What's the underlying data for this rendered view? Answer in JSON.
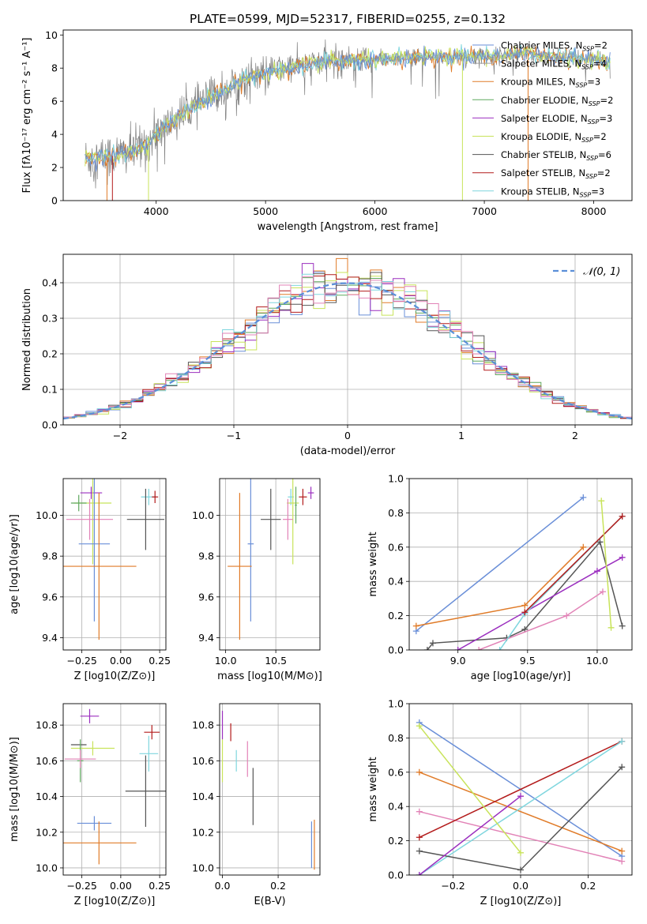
{
  "figure": {
    "title": "PLATE=0599, MJD=52317, FIBERID=0255, z=0.132"
  },
  "colors": {
    "Chabrier MILES": "#6a8fd8",
    "Salpeter MILES": "#9e9e9e",
    "Kroupa MILES": "#e07b28",
    "Chabrier ELODIE": "#5fa85f",
    "Salpeter ELODIE": "#9b2fbf",
    "Kroupa ELODIE": "#c8e35a",
    "Chabrier STELIB": "#555555",
    "Salpeter STELIB": "#b31b1b",
    "Kroupa STELIB": "#7fd6de",
    "pink": "#e283b7",
    "gaussian": "#5b8fd8",
    "data": "#7f7f7f"
  },
  "chart_data": [
    {
      "id": "spectrum",
      "type": "line",
      "xlabel": "wavelength [Angstrom, rest frame]",
      "ylabel": "Flux [fλ10⁻¹⁷ erg cm⁻² s⁻¹ A⁻¹]",
      "xlim": [
        3150,
        8350
      ],
      "ylim": [
        0,
        10.3
      ],
      "xticks": [
        4000,
        5000,
        6000,
        7000,
        8000
      ],
      "yticks": [
        0,
        2,
        4,
        6,
        8,
        10
      ],
      "legend_position": "right",
      "legend": [
        {
          "name": "Chabrier MILES, N_SSP=2",
          "color_key": "Chabrier MILES"
        },
        {
          "name": "Salpeter MILES, N_SSP=4",
          "color_key": "Salpeter MILES"
        },
        {
          "name": "Kroupa MILES, N_SSP=3",
          "color_key": "Kroupa MILES"
        },
        {
          "name": "Chabrier ELODIE, N_SSP=2",
          "color_key": "Chabrier ELODIE"
        },
        {
          "name": "Salpeter ELODIE, N_SSP=3",
          "color_key": "Salpeter ELODIE"
        },
        {
          "name": "Kroupa ELODIE, N_SSP=2",
          "color_key": "Kroupa ELODIE"
        },
        {
          "name": "Chabrier STELIB, N_SSP=6",
          "color_key": "Chabrier STELIB"
        },
        {
          "name": "Salpeter STELIB, N_SSP=2",
          "color_key": "Salpeter STELIB"
        },
        {
          "name": "Kroupa STELIB, N_SSP=3",
          "color_key": "Kroupa STELIB"
        }
      ],
      "continuum": [
        [
          3350,
          2.5
        ],
        [
          3600,
          2.7
        ],
        [
          3800,
          3.0
        ],
        [
          3950,
          3.6
        ],
        [
          4050,
          4.3
        ],
        [
          4200,
          5.0
        ],
        [
          4400,
          5.9
        ],
        [
          4600,
          6.6
        ],
        [
          4850,
          7.4
        ],
        [
          5100,
          7.9
        ],
        [
          5400,
          8.2
        ],
        [
          5700,
          8.5
        ],
        [
          6000,
          8.5
        ],
        [
          6300,
          8.6
        ],
        [
          6600,
          8.7
        ],
        [
          7000,
          8.7
        ],
        [
          7400,
          8.9
        ],
        [
          7800,
          8.6
        ],
        [
          8150,
          8.4
        ]
      ]
    },
    {
      "id": "residuals",
      "type": "bar",
      "xlabel": "(data-model)/error",
      "ylabel": "Normed distribution",
      "xlim": [
        -2.5,
        2.5
      ],
      "ylim": [
        0,
        0.48
      ],
      "xticks": [
        -2,
        -1,
        0,
        1,
        2
      ],
      "yticks": [
        0.0,
        0.1,
        0.2,
        0.3,
        0.4
      ],
      "legend": [
        {
          "name": "N(0,1)",
          "color_key": "gaussian"
        }
      ],
      "legend_position": "top-right",
      "bin_width": 0.1,
      "grid": true
    },
    {
      "id": "age_vs_Z",
      "type": "scatter",
      "xlabel": "Z [log10(Z/Z⊙)]",
      "ylabel": "age  [log10(age/yr)]",
      "xlim": [
        -0.37,
        0.29
      ],
      "ylim": [
        9.34,
        10.18
      ],
      "xticks": [
        -0.25,
        0.0,
        0.25
      ],
      "yticks": [
        9.4,
        9.6,
        9.8,
        10.0
      ],
      "grid": true,
      "points": [
        {
          "color_key": "Salpeter ELODIE",
          "x": -0.19,
          "y": 10.11,
          "xerr": 0.07,
          "yerr": 0.03
        },
        {
          "color_key": "Kroupa ELODIE",
          "x": -0.18,
          "y": 10.06,
          "xerr": 0.12,
          "yerr": 0.3
        },
        {
          "color_key": "Chabrier ELODIE",
          "x": -0.27,
          "y": 10.06,
          "xerr": 0.05,
          "yerr": 0.04
        },
        {
          "color_key": "Kroupa STELIB",
          "x": 0.18,
          "y": 10.09,
          "xerr": 0.05,
          "yerr": 0.04
        },
        {
          "color_key": "Salpeter STELIB",
          "x": 0.22,
          "y": 10.09,
          "xerr": 0.02,
          "yerr": 0.03
        },
        {
          "color_key": "pink",
          "x": -0.2,
          "y": 9.98,
          "xerr": 0.15,
          "yerr": 0.1
        },
        {
          "color_key": "Chabrier STELIB",
          "x": 0.16,
          "y": 9.98,
          "xerr": 0.12,
          "yerr": 0.15
        },
        {
          "color_key": "Chabrier MILES",
          "x": -0.17,
          "y": 9.86,
          "xerr": 0.1,
          "yerr": 0.38
        },
        {
          "color_key": "Kroupa MILES",
          "x": -0.14,
          "y": 9.75,
          "xerr": 0.24,
          "yerr": 0.36
        }
      ]
    },
    {
      "id": "age_vs_mass",
      "type": "scatter",
      "xlabel": "mass [log10(M/M⊙)]",
      "ylabel": "",
      "xlim": [
        9.94,
        10.94
      ],
      "ylim": [
        9.34,
        10.18
      ],
      "xticks": [
        10.0,
        10.5
      ],
      "yticks": [
        9.4,
        9.6,
        9.8,
        10.0
      ],
      "grid": true,
      "points": [
        {
          "color_key": "Salpeter ELODIE",
          "x": 10.85,
          "y": 10.11,
          "xerr": 0.03,
          "yerr": 0.03
        },
        {
          "color_key": "Salpeter STELIB",
          "x": 10.77,
          "y": 10.09,
          "xerr": 0.04,
          "yerr": 0.04
        },
        {
          "color_key": "Kroupa STELIB",
          "x": 10.65,
          "y": 10.09,
          "xerr": 0.03,
          "yerr": 0.04
        },
        {
          "color_key": "Kroupa ELODIE",
          "x": 10.67,
          "y": 10.06,
          "xerr": 0.06,
          "yerr": 0.3
        },
        {
          "color_key": "Chabrier ELODIE",
          "x": 10.7,
          "y": 10.05,
          "xerr": 0.01,
          "yerr": 0.09
        },
        {
          "color_key": "pink",
          "x": 10.62,
          "y": 9.98,
          "xerr": 0.05,
          "yerr": 0.1
        },
        {
          "color_key": "Chabrier STELIB",
          "x": 10.45,
          "y": 9.98,
          "xerr": 0.1,
          "yerr": 0.15
        },
        {
          "color_key": "Chabrier MILES",
          "x": 10.25,
          "y": 9.86,
          "xerr": 0.03,
          "yerr": 0.38
        },
        {
          "color_key": "Kroupa MILES",
          "x": 10.14,
          "y": 9.75,
          "xerr": 0.12,
          "yerr": 0.36
        }
      ]
    },
    {
      "id": "weight_vs_age",
      "type": "line",
      "xlabel": "age  [log10(age/yr)]",
      "ylabel": "mass weight",
      "xlim": [
        8.65,
        10.25
      ],
      "ylim": [
        0,
        1.0
      ],
      "xticks": [
        9.0,
        9.5,
        10.0
      ],
      "yticks": [
        0.0,
        0.2,
        0.4,
        0.6,
        0.8,
        1.0
      ],
      "grid": true,
      "series": [
        {
          "color_key": "Chabrier MILES",
          "x": [
            8.7,
            9.9
          ],
          "y": [
            0.11,
            0.89
          ]
        },
        {
          "color_key": "Kroupa MILES",
          "x": [
            8.7,
            9.48,
            9.9
          ],
          "y": [
            0.14,
            0.26,
            0.6
          ]
        },
        {
          "color_key": "Chabrier STELIB",
          "x": [
            8.78,
            8.82,
            9.35,
            9.48,
            10.02,
            10.18
          ],
          "y": [
            0.0,
            0.04,
            0.07,
            0.12,
            0.63,
            0.14
          ]
        },
        {
          "color_key": "Salpeter ELODIE",
          "x": 9.0,
          "y": 0
        },
        {
          "color_key": "Salpeter ELODIE",
          "x": [
            9.0,
            10.0,
            10.18
          ],
          "y": [
            0.0,
            0.46,
            0.54
          ]
        },
        {
          "color_key": "pink",
          "x": [
            9.15,
            9.78,
            10.04
          ],
          "y": [
            0.0,
            0.2,
            0.34
          ]
        },
        {
          "color_key": "Kroupa STELIB",
          "x": [
            9.3,
            9.48,
            10.18
          ],
          "y": [
            0.0,
            0.21,
            0.78
          ]
        },
        {
          "color_key": "Salpeter STELIB",
          "x": [
            9.48,
            10.18
          ],
          "y": [
            0.22,
            0.78
          ]
        },
        {
          "color_key": "Kroupa ELODIE",
          "x": [
            10.03,
            10.1
          ],
          "y": [
            0.87,
            0.13
          ]
        }
      ]
    },
    {
      "id": "mass_vs_Z",
      "type": "scatter",
      "xlabel": "Z [log10(Z/Z⊙)]",
      "ylabel": "mass [log10(M/M⊙)]",
      "xlim": [
        -0.37,
        0.29
      ],
      "ylim": [
        9.96,
        10.92
      ],
      "xticks": [
        -0.25,
        0.0,
        0.25
      ],
      "yticks": [
        10.0,
        10.2,
        10.4,
        10.6,
        10.8
      ],
      "grid": true,
      "points": [
        {
          "color_key": "Salpeter ELODIE",
          "x": -0.2,
          "y": 10.85,
          "xerr": 0.06,
          "yerr": 0.04
        },
        {
          "color_key": "Salpeter STELIB",
          "x": 0.2,
          "y": 10.76,
          "xerr": 0.05,
          "yerr": 0.04
        },
        {
          "color_key": "Kroupa ELODIE",
          "x": -0.18,
          "y": 10.67,
          "xerr": 0.14,
          "yerr": 0.04
        },
        {
          "color_key": "Chabrier STELIB",
          "x": -0.27,
          "y": 10.69,
          "xerr": 0.05,
          "yerr": 0.0
        },
        {
          "color_key": "Chabrier ELODIE",
          "x": -0.26,
          "y": 10.6,
          "xerr": 0.02,
          "yerr": 0.12
        },
        {
          "color_key": "Kroupa STELIB",
          "x": 0.18,
          "y": 10.64,
          "xerr": 0.06,
          "yerr": 0.1
        },
        {
          "color_key": "pink",
          "x": -0.26,
          "y": 10.61,
          "xerr": 0.1,
          "yerr": 0.05
        },
        {
          "color_key": "Chabrier STELIB",
          "x": 0.16,
          "y": 10.43,
          "xerr": 0.13,
          "yerr": 0.2
        },
        {
          "color_key": "Chabrier MILES",
          "x": -0.17,
          "y": 10.25,
          "xerr": 0.11,
          "yerr": 0.04
        },
        {
          "color_key": "Kroupa MILES",
          "x": -0.14,
          "y": 10.14,
          "xerr": 0.24,
          "yerr": 0.12
        }
      ]
    },
    {
      "id": "mass_vs_EBV",
      "type": "scatter",
      "xlabel": "E(B-V)",
      "ylabel": "",
      "xlim": [
        -0.01,
        0.35
      ],
      "ylim": [
        9.96,
        10.92
      ],
      "xticks": [
        0.0,
        0.2
      ],
      "yticks": [
        10.0,
        10.2,
        10.4,
        10.6,
        10.8
      ],
      "grid": true,
      "points": [
        {
          "color_key": "Salpeter ELODIE",
          "x": 0.0,
          "y": 10.8,
          "xerr": 0,
          "yerr": 0.08
        },
        {
          "color_key": "Salpeter STELIB",
          "x": 0.03,
          "y": 10.76,
          "xerr": 0,
          "yerr": 0.05
        },
        {
          "color_key": "Kroupa ELODIE",
          "x": 0.0,
          "y": 10.6,
          "xerr": 0,
          "yerr": 0.12
        },
        {
          "color_key": "Kroupa STELIB",
          "x": 0.05,
          "y": 10.6,
          "xerr": 0,
          "yerr": 0.06
        },
        {
          "color_key": "pink",
          "x": 0.09,
          "y": 10.61,
          "xerr": 0,
          "yerr": 0.1
        },
        {
          "color_key": "Chabrier STELIB",
          "x": 0.11,
          "y": 10.4,
          "xerr": 0,
          "yerr": 0.16
        },
        {
          "color_key": "Chabrier MILES",
          "x": 0.32,
          "y": 10.13,
          "xerr": 0,
          "yerr": 0.13
        },
        {
          "color_key": "Kroupa MILES",
          "x": 0.33,
          "y": 10.13,
          "xerr": 0,
          "yerr": 0.14
        }
      ]
    },
    {
      "id": "weight_vs_Z",
      "type": "line",
      "xlabel": "Z [log10(Z/Z⊙)]",
      "ylabel": "mass weight",
      "xlim": [
        -0.33,
        0.33
      ],
      "ylim": [
        0,
        1.0
      ],
      "xticks": [
        -0.2,
        0.0,
        0.2
      ],
      "yticks": [
        0.0,
        0.2,
        0.4,
        0.6,
        0.8,
        1.0
      ],
      "grid": true,
      "series": [
        {
          "color_key": "Chabrier MILES",
          "x": [
            -0.3,
            0.3
          ],
          "y": [
            0.89,
            0.11
          ]
        },
        {
          "color_key": "Kroupa MILES",
          "x": [
            -0.3,
            0.3
          ],
          "y": [
            0.6,
            0.14
          ]
        },
        {
          "color_key": "pink",
          "x": [
            -0.3,
            0.3
          ],
          "y": [
            0.37,
            0.08
          ]
        },
        {
          "color_key": "Salpeter STELIB",
          "x": [
            -0.3,
            0.3
          ],
          "y": [
            0.22,
            0.78
          ]
        },
        {
          "color_key": "Kroupa STELIB",
          "x": [
            -0.3,
            0.3
          ],
          "y": [
            0.0,
            0.78
          ]
        },
        {
          "color_key": "Chabrier STELIB",
          "x": [
            -0.3,
            0.0,
            0.3
          ],
          "y": [
            0.14,
            0.03,
            0.63
          ]
        },
        {
          "color_key": "Salpeter ELODIE",
          "x": [
            -0.3,
            0.0
          ],
          "y": [
            0.0,
            0.46
          ]
        },
        {
          "color_key": "Kroupa ELODIE",
          "x": [
            -0.3,
            0.0
          ],
          "y": [
            0.87,
            0.13
          ]
        }
      ]
    }
  ]
}
